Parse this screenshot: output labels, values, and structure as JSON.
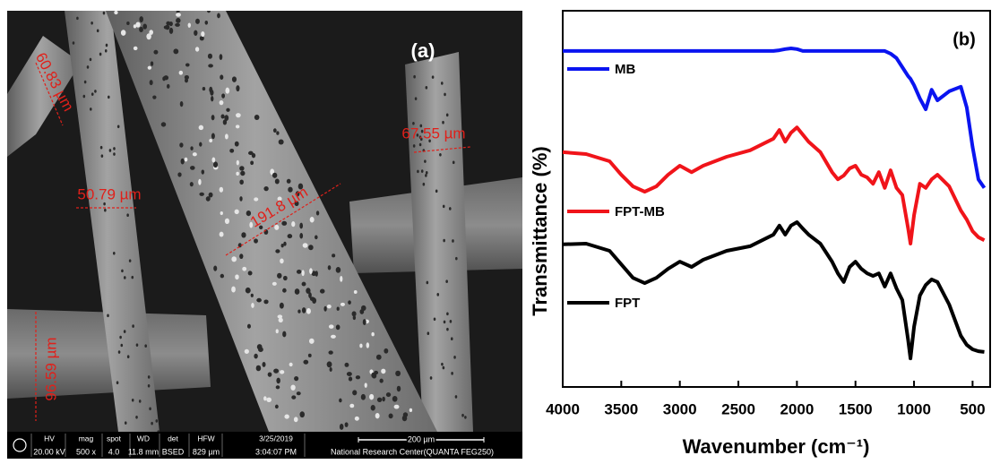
{
  "sem_image": {
    "panel_label": "(a)",
    "measurements": [
      "60.83 µm",
      "50.79 µm",
      "191.8 µm",
      "67.55 µm",
      "96.59 µm"
    ],
    "info_bar": {
      "headers": [
        "HV",
        "mag",
        "spot",
        "WD",
        "det",
        "HFW"
      ],
      "values": [
        "20.00 kV",
        "500 x",
        "4.0",
        "11.8 mm",
        "BSED",
        "829 µm"
      ],
      "date": "3/25/2019",
      "time": "3:04:07 PM",
      "scale": "200 µm",
      "institution": "National Research Center(QUANTA FEG250)"
    }
  },
  "chart_data": {
    "type": "line",
    "panel_label": "(b)",
    "xlabel": "Wavenumber (cm⁻¹)",
    "ylabel": "Transmittance (%)",
    "x": [
      4000,
      3800,
      3600,
      3500,
      3400,
      3300,
      3200,
      3100,
      3000,
      2900,
      2800,
      2600,
      2400,
      2200,
      2150,
      2100,
      2050,
      2000,
      1950,
      1900,
      1800,
      1700,
      1650,
      1600,
      1550,
      1500,
      1450,
      1400,
      1350,
      1300,
      1250,
      1200,
      1150,
      1100,
      1050,
      1030,
      1000,
      950,
      900,
      850,
      800,
      700,
      600,
      550,
      500,
      450,
      400
    ],
    "xlim": [
      4000,
      350
    ],
    "xticks": [
      4000,
      3500,
      3000,
      2500,
      2000,
      1500,
      1000,
      500
    ],
    "ylim": [
      0,
      100
    ],
    "series": [
      {
        "name": "MB",
        "color": "#0a14f0",
        "values": [
          89.3,
          89.3,
          89.3,
          89.3,
          89.3,
          89.3,
          89.3,
          89.3,
          89.3,
          89.3,
          89.3,
          89.3,
          89.3,
          89.3,
          89.5,
          89.8,
          90,
          89.8,
          89.3,
          89.3,
          89.3,
          89.3,
          89.3,
          89.3,
          89.3,
          89.3,
          89.3,
          89.3,
          89.3,
          89.3,
          89.3,
          88.6,
          87.4,
          85,
          82.6,
          81.9,
          80.2,
          76.7,
          73.8,
          79,
          76.2,
          78.6,
          79.8,
          74.3,
          63.8,
          55.2,
          52.9
        ]
      },
      {
        "name": "FPT-MB",
        "color": "#f0141a",
        "values": [
          62.4,
          61.9,
          60,
          56.4,
          53.3,
          51.9,
          53.3,
          56.4,
          58.8,
          57.1,
          58.8,
          61.2,
          62.9,
          66,
          68.3,
          65.2,
          67.6,
          69,
          67.1,
          65.2,
          62.4,
          57.1,
          55.2,
          56.2,
          58.1,
          58.8,
          56.4,
          55.7,
          54,
          57.1,
          52.9,
          57.6,
          52.9,
          51,
          42.1,
          38.1,
          45.7,
          54,
          52.9,
          55.2,
          56.4,
          53.3,
          46.9,
          44.5,
          41.4,
          39.8,
          39
        ]
      },
      {
        "name": "FPT",
        "color": "#000000",
        "values": [
          37.9,
          38.1,
          36.2,
          32.6,
          29,
          27.6,
          29,
          31.4,
          33.3,
          31.9,
          33.8,
          36.2,
          37.4,
          40.5,
          42.9,
          40.5,
          42.9,
          43.8,
          42.1,
          40.5,
          38.1,
          33.3,
          30.2,
          27.9,
          31.9,
          33.3,
          31.4,
          30.2,
          29.5,
          30.2,
          26.7,
          30.2,
          26.2,
          23.1,
          12.4,
          7.6,
          16,
          24.3,
          27.1,
          28.6,
          27.9,
          21.9,
          13.6,
          11.2,
          10,
          9.5,
          9.3
        ]
      }
    ]
  }
}
